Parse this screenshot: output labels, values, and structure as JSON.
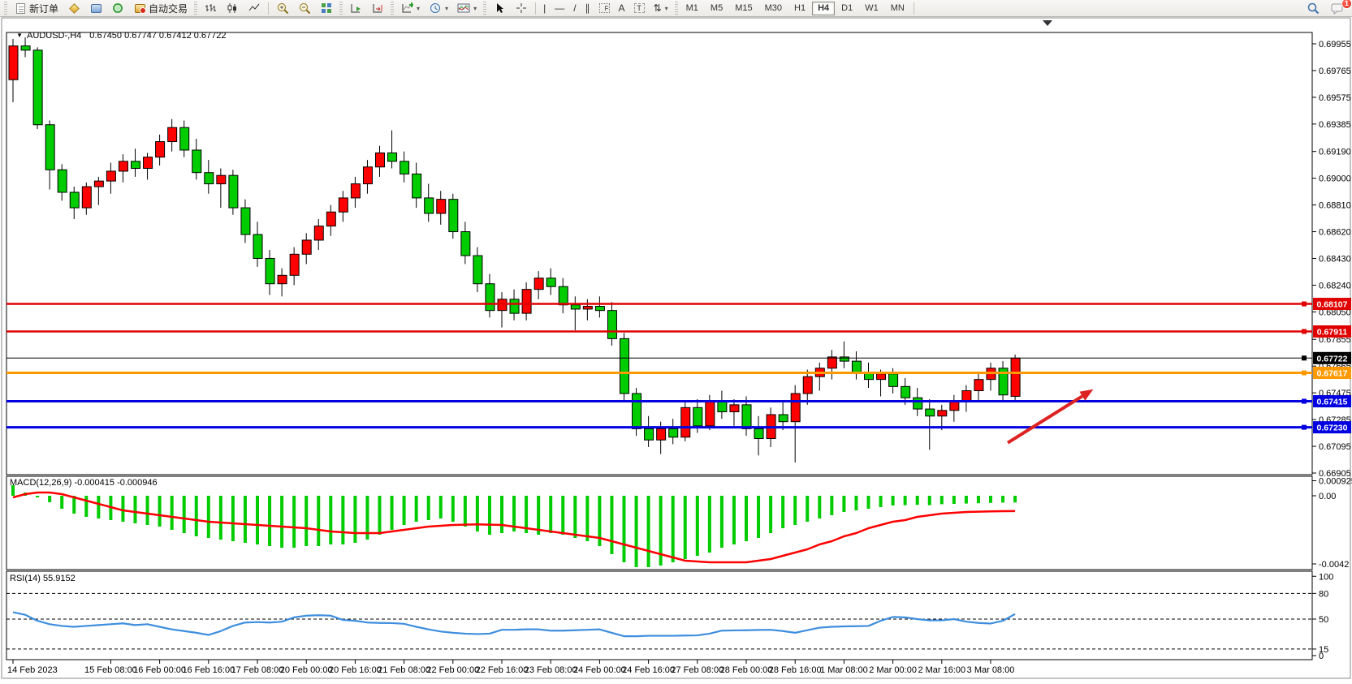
{
  "toolbar": {
    "new_order_label": "新订单",
    "autotrading_label": "自动交易",
    "timeframes": [
      "M1",
      "M5",
      "M15",
      "M30",
      "H1",
      "H4",
      "D1",
      "W1",
      "MN"
    ],
    "active_timeframe": "H4",
    "notification_badge": "1",
    "tool_glyphs": {
      "vertical_line": "|",
      "horizontal_line": "—",
      "trend_line": "/",
      "channel": "∥",
      "fibonacci": "F",
      "text": "A",
      "text_label": "T",
      "arrows": "⇅",
      "dropdown": "▾"
    }
  },
  "chart_header": {
    "collapse_icon": "▼",
    "symbol_title": "AUDUSD-,H4",
    "ohlc": "0.67450 0.67747 0.67412 0.67722"
  },
  "indicator_labels": {
    "macd": "MACD(12,26,9) -0.000415 -0.000946",
    "rsi": "RSI(14) 55.9152"
  },
  "chart_data": {
    "type": "candlestick",
    "symbol": "AUDUSD-",
    "timeframe": "H4",
    "title": "AUDUSD-,H4 0.67450 0.67747 0.67412 0.67722",
    "last_candle": {
      "open": "0.67450",
      "high": "0.67747",
      "low": "0.67412",
      "close": "0.67722"
    },
    "bull_color": "#ff0000",
    "bear_color": "#00cc00",
    "wick_color": "#000000",
    "color_convention": "red = up, green = down",
    "price_axis_labels": [
      "0.69955",
      "0.69765",
      "0.69575",
      "0.69385",
      "0.69190",
      "0.69000",
      "0.68810",
      "0.68620",
      "0.68430",
      "0.68240",
      "0.68050",
      "0.67855",
      "0.67665",
      "0.67475",
      "0.67285",
      "0.67095",
      "0.66905"
    ],
    "date_axis": {
      "labels": [
        "14 Feb 2023",
        "15 Feb 08:00",
        "16 Feb 00:00",
        "16 Feb 16:00",
        "17 Feb 08:00",
        "20 Feb 00:00",
        "20 Feb 16:00",
        "21 Feb 08:00",
        "22 Feb 00:00",
        "22 Feb 16:00",
        "23 Feb 08:00",
        "24 Feb 00:00",
        "24 Feb 16:00",
        "27 Feb 08:00",
        "28 Feb 00:00",
        "28 Feb 16:00",
        "1 Mar 08:00",
        "2 Mar 00:00",
        "2 Mar 16:00",
        "3 Mar 08:00"
      ],
      "candle_indices": [
        0,
        8,
        12,
        16,
        20,
        24,
        28,
        32,
        36,
        40,
        44,
        48,
        52,
        56,
        60,
        64,
        68,
        72,
        76,
        80
      ]
    },
    "candles": [
      [
        0.697,
        0.6999,
        0.6954,
        0.6994
      ],
      [
        0.6994,
        0.7,
        0.6986,
        0.6991
      ],
      [
        0.6991,
        0.6993,
        0.6935,
        0.6938
      ],
      [
        0.6938,
        0.6941,
        0.6892,
        0.6906
      ],
      [
        0.6906,
        0.691,
        0.6884,
        0.689
      ],
      [
        0.689,
        0.6894,
        0.6871,
        0.6879
      ],
      [
        0.6879,
        0.6897,
        0.6874,
        0.6894
      ],
      [
        0.6894,
        0.6901,
        0.6881,
        0.6898
      ],
      [
        0.6898,
        0.6911,
        0.6889,
        0.6905
      ],
      [
        0.6905,
        0.6917,
        0.6897,
        0.6912
      ],
      [
        0.6912,
        0.6921,
        0.6901,
        0.6907
      ],
      [
        0.6907,
        0.6918,
        0.6899,
        0.6915
      ],
      [
        0.6915,
        0.6931,
        0.6909,
        0.6926
      ],
      [
        0.6926,
        0.6942,
        0.6919,
        0.6936
      ],
      [
        0.6936,
        0.6941,
        0.6915,
        0.692
      ],
      [
        0.692,
        0.6928,
        0.6899,
        0.6904
      ],
      [
        0.6904,
        0.6913,
        0.6889,
        0.6896
      ],
      [
        0.6896,
        0.6907,
        0.6879,
        0.6902
      ],
      [
        0.6902,
        0.6906,
        0.6874,
        0.6879
      ],
      [
        0.6879,
        0.6885,
        0.6854,
        0.686
      ],
      [
        0.686,
        0.6869,
        0.6837,
        0.6843
      ],
      [
        0.6843,
        0.6849,
        0.6817,
        0.6825
      ],
      [
        0.6825,
        0.6836,
        0.6816,
        0.6831
      ],
      [
        0.6831,
        0.6851,
        0.6824,
        0.6846
      ],
      [
        0.6846,
        0.6861,
        0.6839,
        0.6856
      ],
      [
        0.6856,
        0.6871,
        0.6849,
        0.6866
      ],
      [
        0.6866,
        0.6881,
        0.6859,
        0.6876
      ],
      [
        0.6876,
        0.6891,
        0.6869,
        0.6886
      ],
      [
        0.6886,
        0.6901,
        0.6879,
        0.6896
      ],
      [
        0.6896,
        0.6913,
        0.6889,
        0.6908
      ],
      [
        0.6908,
        0.6923,
        0.6901,
        0.6918
      ],
      [
        0.6918,
        0.6934,
        0.6907,
        0.6912
      ],
      [
        0.6912,
        0.6919,
        0.6897,
        0.6903
      ],
      [
        0.6903,
        0.6911,
        0.6879,
        0.6886
      ],
      [
        0.6886,
        0.6896,
        0.6869,
        0.6875
      ],
      [
        0.6875,
        0.6891,
        0.6867,
        0.6885
      ],
      [
        0.6885,
        0.6889,
        0.6857,
        0.6862
      ],
      [
        0.6862,
        0.6869,
        0.6839,
        0.6845
      ],
      [
        0.6845,
        0.6851,
        0.6819,
        0.6825
      ],
      [
        0.6825,
        0.6832,
        0.6801,
        0.6806
      ],
      [
        0.6806,
        0.6819,
        0.6794,
        0.6814
      ],
      [
        0.6814,
        0.6821,
        0.6799,
        0.6804
      ],
      [
        0.6804,
        0.6826,
        0.6799,
        0.6821
      ],
      [
        0.6821,
        0.6834,
        0.6814,
        0.6829
      ],
      [
        0.6829,
        0.6836,
        0.6817,
        0.6823
      ],
      [
        0.6823,
        0.6829,
        0.6804,
        0.681
      ],
      [
        0.681,
        0.6816,
        0.6792,
        0.6807
      ],
      [
        0.6807,
        0.6814,
        0.6799,
        0.6809
      ],
      [
        0.6809,
        0.6816,
        0.6801,
        0.6806
      ],
      [
        0.6806,
        0.6812,
        0.6781,
        0.6786
      ],
      [
        0.6786,
        0.679,
        0.6742,
        0.6747
      ],
      [
        0.6747,
        0.6751,
        0.6717,
        0.6722
      ],
      [
        0.6722,
        0.6731,
        0.6709,
        0.6714
      ],
      [
        0.6714,
        0.6727,
        0.6704,
        0.6722
      ],
      [
        0.6722,
        0.6729,
        0.6711,
        0.6716
      ],
      [
        0.6716,
        0.6741,
        0.6713,
        0.6737
      ],
      [
        0.6737,
        0.6743,
        0.6719,
        0.6724
      ],
      [
        0.6724,
        0.6746,
        0.6721,
        0.6741
      ],
      [
        0.6741,
        0.6749,
        0.6729,
        0.6734
      ],
      [
        0.6734,
        0.6743,
        0.6724,
        0.6739
      ],
      [
        0.6739,
        0.6745,
        0.6717,
        0.6722
      ],
      [
        0.6722,
        0.6731,
        0.6703,
        0.6715
      ],
      [
        0.6715,
        0.6737,
        0.6709,
        0.6732
      ],
      [
        0.6732,
        0.6741,
        0.6721,
        0.6727
      ],
      [
        0.6727,
        0.6753,
        0.6698,
        0.6747
      ],
      [
        0.6747,
        0.6764,
        0.6739,
        0.6759
      ],
      [
        0.6759,
        0.6769,
        0.6749,
        0.6765
      ],
      [
        0.6765,
        0.6778,
        0.6757,
        0.6773
      ],
      [
        0.6773,
        0.6784,
        0.6765,
        0.677
      ],
      [
        0.677,
        0.6777,
        0.6757,
        0.6762
      ],
      [
        0.6762,
        0.6769,
        0.6751,
        0.6757
      ],
      [
        0.6757,
        0.6764,
        0.6745,
        0.6761
      ],
      [
        0.6761,
        0.6765,
        0.6747,
        0.6752
      ],
      [
        0.6752,
        0.6758,
        0.6739,
        0.6744
      ],
      [
        0.6744,
        0.6751,
        0.6731,
        0.6736
      ],
      [
        0.6736,
        0.6743,
        0.6707,
        0.6731
      ],
      [
        0.6731,
        0.6739,
        0.6721,
        0.6735
      ],
      [
        0.6735,
        0.6746,
        0.6727,
        0.6742
      ],
      [
        0.6742,
        0.6753,
        0.6734,
        0.6749
      ],
      [
        0.6749,
        0.6761,
        0.6741,
        0.6757
      ],
      [
        0.6757,
        0.6769,
        0.6749,
        0.6765
      ],
      [
        0.6765,
        0.677,
        0.6741,
        0.6746
      ],
      [
        0.6745,
        0.67747,
        0.67412,
        0.67722
      ]
    ],
    "horizontal_lines": [
      {
        "price": 0.68107,
        "color": "#e00000",
        "width": 2.5,
        "label": "0.68107"
      },
      {
        "price": 0.67911,
        "color": "#e00000",
        "width": 2.5,
        "label": "0.67911"
      },
      {
        "price": 0.67722,
        "color": "#000000",
        "width": 1,
        "label": "0.67722"
      },
      {
        "price": 0.67617,
        "color": "#ff9900",
        "width": 3,
        "label": "0.67617"
      },
      {
        "price": 0.67415,
        "color": "#0000e0",
        "width": 3,
        "label": "0.67415"
      },
      {
        "price": 0.6723,
        "color": "#0000e0",
        "width": 3,
        "label": "0.67230"
      }
    ],
    "trend_arrow": {
      "from": {
        "candle": 81.4,
        "price": 0.6712
      },
      "to": {
        "candle": 88.4,
        "price": 0.675
      },
      "color": "#dd2222"
    },
    "macd": {
      "label": "MACD(12,26,9)",
      "value": "-0.000415",
      "signal_value": "-0.000946",
      "axis_labels": [
        "0.000925",
        "0.00",
        "-0.0042"
      ],
      "bar_color": "#00cc00",
      "line_color": "#ff0000",
      "histogram": [
        0.00065,
        0.0002,
        -0.0001,
        -0.0004,
        -0.0008,
        -0.0011,
        -0.0013,
        -0.0014,
        -0.0015,
        -0.0016,
        -0.0017,
        -0.0018,
        -0.0019,
        -0.0021,
        -0.0023,
        -0.0025,
        -0.0026,
        -0.0027,
        -0.0028,
        -0.0029,
        -0.003,
        -0.0031,
        -0.0032,
        -0.0032,
        -0.0031,
        -0.0031,
        -0.003,
        -0.003,
        -0.0029,
        -0.0027,
        -0.0024,
        -0.0021,
        -0.0018,
        -0.0016,
        -0.0015,
        -0.0014,
        -0.0016,
        -0.0019,
        -0.0022,
        -0.0024,
        -0.0023,
        -0.0022,
        -0.0023,
        -0.0024,
        -0.0023,
        -0.0024,
        -0.0026,
        -0.0028,
        -0.0031,
        -0.0036,
        -0.0041,
        -0.0044,
        -0.0044,
        -0.0043,
        -0.0041,
        -0.0039,
        -0.0037,
        -0.0035,
        -0.0032,
        -0.003,
        -0.0028,
        -0.0026,
        -0.0023,
        -0.002,
        -0.0018,
        -0.0016,
        -0.0014,
        -0.0012,
        -0.001,
        -0.0009,
        -0.0008,
        -0.0007,
        -0.0006,
        -0.00058,
        -0.00056,
        -0.00058,
        -0.00052,
        -0.0005,
        -0.00048,
        -0.00046,
        -0.00044,
        -0.00042,
        -0.000415
      ],
      "signal_line": [
        -0.0001,
        0.0001,
        0.0002,
        0.0002,
        0.0001,
        -0.0001,
        -0.0003,
        -0.0005,
        -0.0007,
        -0.0009,
        -0.001,
        -0.0011,
        -0.0012,
        -0.0013,
        -0.0014,
        -0.0015,
        -0.0016,
        -0.00165,
        -0.0017,
        -0.00175,
        -0.0018,
        -0.00185,
        -0.0019,
        -0.00195,
        -0.002,
        -0.0021,
        -0.0022,
        -0.00225,
        -0.0023,
        -0.0023,
        -0.0023,
        -0.0022,
        -0.0021,
        -0.002,
        -0.0019,
        -0.00185,
        -0.0018,
        -0.00178,
        -0.00176,
        -0.00178,
        -0.0018,
        -0.0019,
        -0.002,
        -0.0021,
        -0.0022,
        -0.0023,
        -0.0024,
        -0.0025,
        -0.0026,
        -0.0028,
        -0.003,
        -0.0032,
        -0.0034,
        -0.0036,
        -0.0038,
        -0.004,
        -0.00405,
        -0.0041,
        -0.0041,
        -0.0041,
        -0.0041,
        -0.004,
        -0.0039,
        -0.0037,
        -0.0035,
        -0.0033,
        -0.003,
        -0.0028,
        -0.0025,
        -0.0023,
        -0.002,
        -0.0018,
        -0.0016,
        -0.0015,
        -0.0013,
        -0.0012,
        -0.0011,
        -0.00105,
        -0.001,
        -0.00098,
        -0.00096,
        -0.00095,
        -0.000946
      ]
    },
    "rsi": {
      "label": "RSI(14)",
      "value": "55.9152",
      "axis_labels": [
        "100",
        "80",
        "50",
        "15",
        "0"
      ],
      "levels": [
        80,
        50,
        15
      ],
      "line_color": "#3e8ede",
      "values": [
        58,
        55,
        48,
        44,
        42,
        41,
        42,
        43,
        44,
        45,
        43,
        44,
        41,
        38,
        36,
        34,
        31.5,
        36,
        42,
        46,
        46.5,
        46,
        47,
        52,
        54,
        54.5,
        54,
        49,
        48,
        46,
        45.5,
        45.3,
        44.5,
        41,
        38,
        35.5,
        34,
        33,
        32.5,
        33,
        37.5,
        37.5,
        38,
        38,
        36.5,
        36.5,
        37,
        37.5,
        38,
        34,
        30,
        30,
        30.5,
        30.5,
        30.5,
        30.8,
        31,
        33,
        36.5,
        36.8,
        37,
        37.3,
        37.5,
        36,
        34,
        37,
        40,
        41,
        41.5,
        41.7,
        42,
        48,
        52.5,
        52,
        50,
        48.5,
        48.5,
        50,
        47,
        45.5,
        44.8,
        48,
        55.9152
      ]
    }
  }
}
